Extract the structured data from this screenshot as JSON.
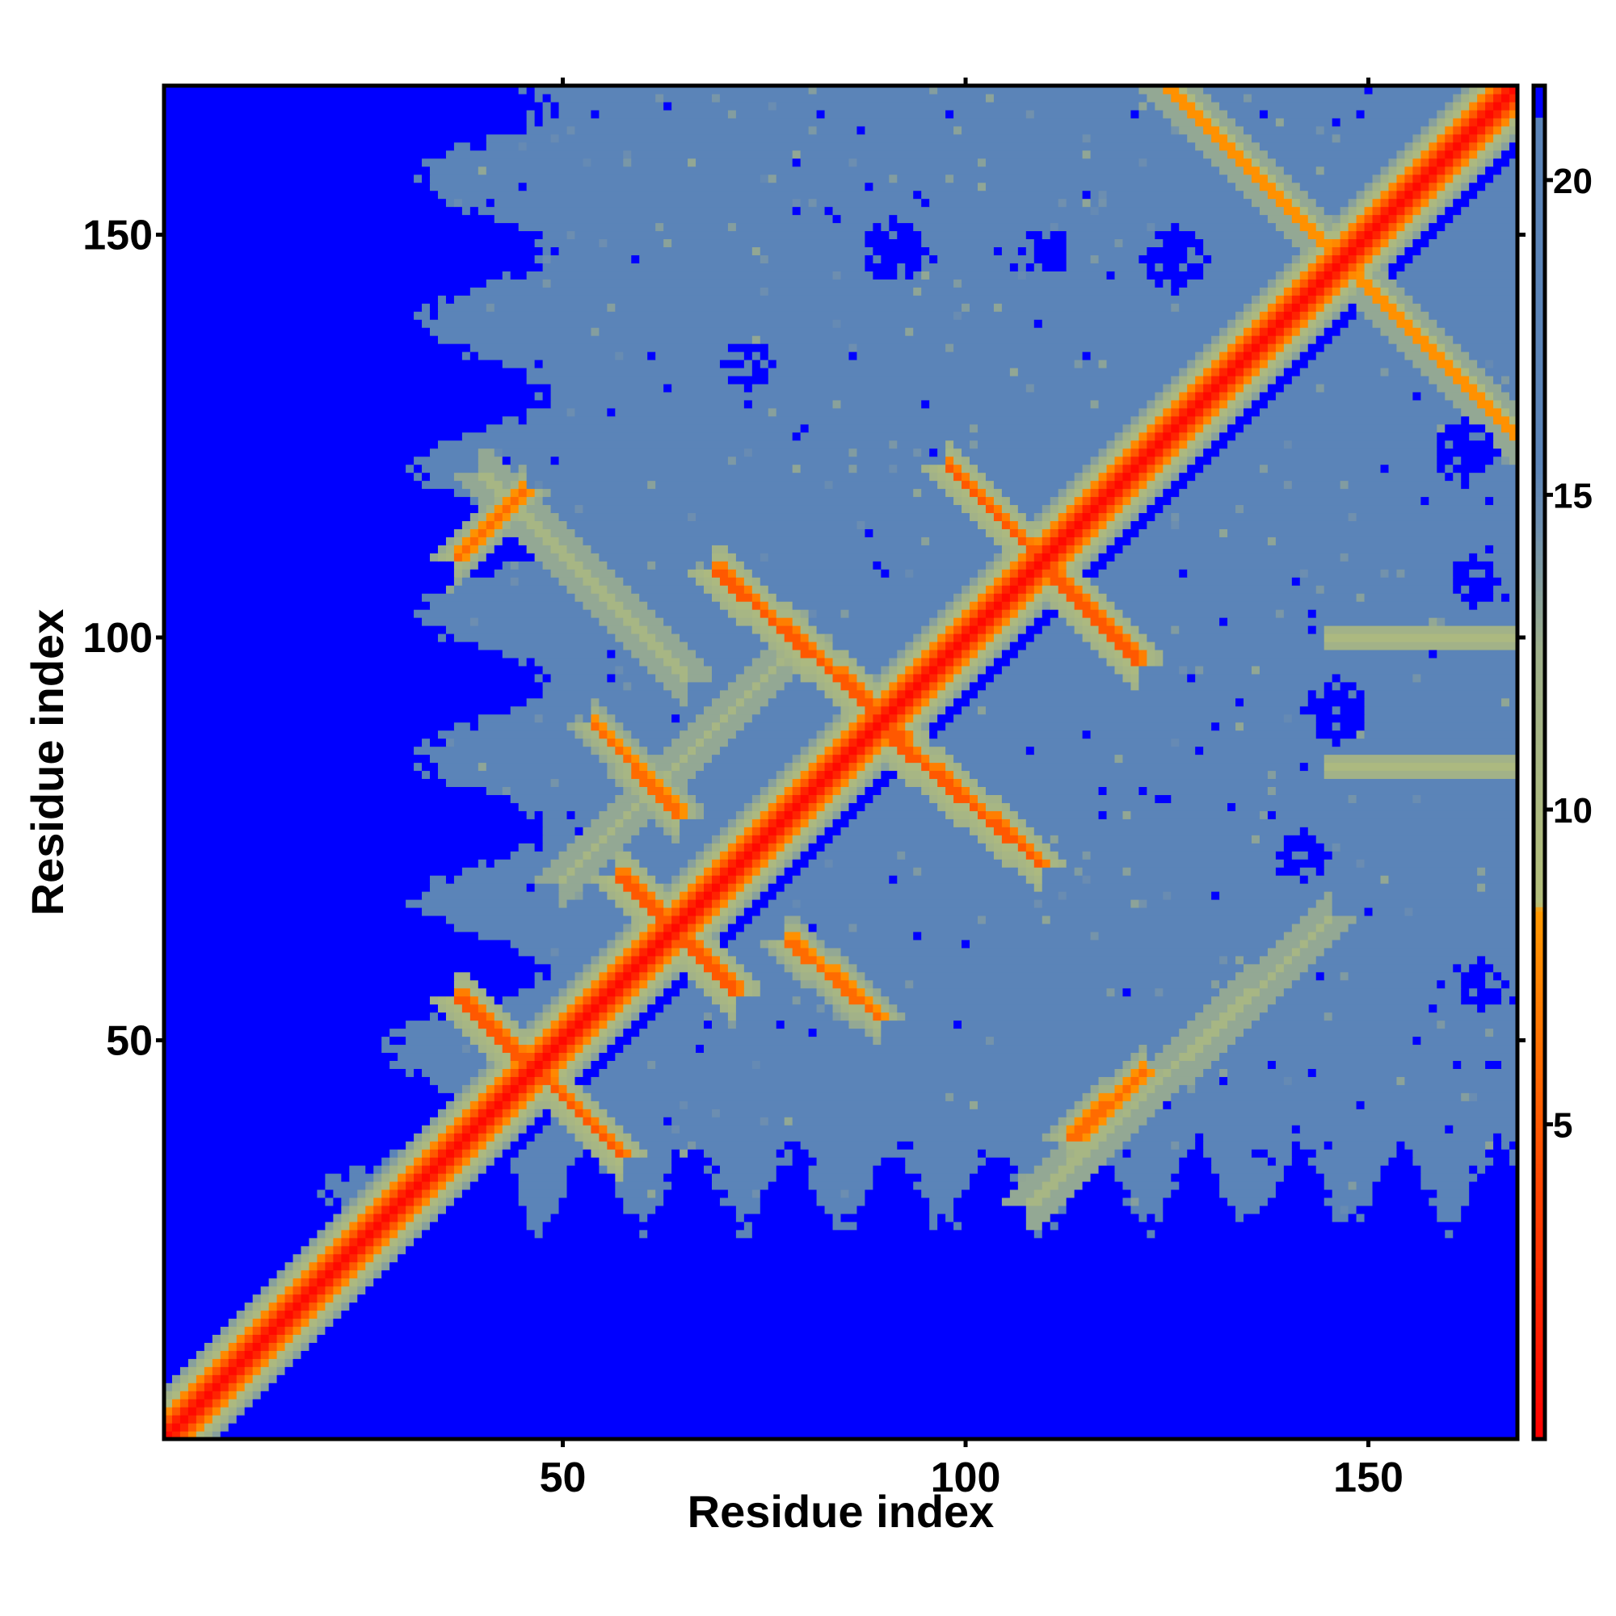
{
  "chart_data": {
    "type": "heatmap",
    "title": "",
    "xlabel": "Residue index",
    "ylabel": "Residue index",
    "n_residues": 168,
    "xlim": [
      1,
      168
    ],
    "ylim": [
      1,
      168
    ],
    "x_ticks": [
      50,
      100,
      150
    ],
    "y_ticks": [
      50,
      100,
      150
    ],
    "x_tick_labels": [
      "50",
      "100",
      "150"
    ],
    "y_tick_labels": [
      "50",
      "100",
      "150"
    ],
    "colorbar": {
      "ticks": [
        5,
        10,
        15,
        20
      ],
      "tick_labels": [
        "5",
        "10",
        "15",
        "20"
      ],
      "range": [
        0,
        21.5
      ],
      "stops": [
        {
          "value": 0,
          "color": "#ff0000"
        },
        {
          "value": 4,
          "color": "#ff4500"
        },
        {
          "value": 8.4,
          "color": "#ff9900"
        },
        {
          "value": 8.5,
          "color": "#b4bf7a"
        },
        {
          "value": 12.5,
          "color": "#9fb08a"
        },
        {
          "value": 14.5,
          "color": "#6e8fb0"
        },
        {
          "value": 15.5,
          "color": "#5b84b8"
        },
        {
          "value": 21,
          "color": "#5b84b8"
        },
        {
          "value": 21.01,
          "color": "#0000ff"
        },
        {
          "value": 21.5,
          "color": "#0000ff"
        }
      ]
    },
    "upper_triangle_fill": 19.5,
    "lower_triangle_fill": 21.5,
    "background_fill": 19.5,
    "features": [
      {
        "kind": "diagonal",
        "width": 1.5,
        "center_value": 1
      },
      {
        "kind": "segment",
        "from": [
          37,
          55
        ],
        "to": [
          57,
          36
        ],
        "value": 5
      },
      {
        "kind": "segment",
        "from": [
          37,
          110
        ],
        "to": [
          45,
          118
        ],
        "value": 6
      },
      {
        "kind": "segment",
        "from": [
          54,
          89
        ],
        "to": [
          64,
          78
        ],
        "value": 6
      },
      {
        "kind": "segment",
        "from": [
          57,
          70
        ],
        "to": [
          71,
          56
        ],
        "value": 5
      },
      {
        "kind": "segment",
        "from": [
          69,
          108
        ],
        "to": [
          92,
          88
        ],
        "value": 5
      },
      {
        "kind": "segment",
        "from": [
          90,
          88
        ],
        "to": [
          109,
          72
        ],
        "value": 5
      },
      {
        "kind": "segment",
        "from": [
          98,
          121
        ],
        "to": [
          121,
          97
        ],
        "value": 5
      },
      {
        "kind": "segment",
        "from": [
          78,
          62
        ],
        "to": [
          89,
          53
        ],
        "value": 6
      },
      {
        "kind": "segment",
        "from": [
          113,
          38
        ],
        "to": [
          122,
          46
        ],
        "value": 6
      },
      {
        "kind": "segment",
        "from": [
          108,
          30
        ],
        "to": [
          145,
          65
        ],
        "value": 11
      },
      {
        "kind": "segment",
        "from": [
          50,
          70
        ],
        "to": [
          80,
          100
        ],
        "value": 11
      },
      {
        "kind": "segment",
        "from": [
          40,
          120
        ],
        "to": [
          65,
          95
        ],
        "value": 11
      },
      {
        "kind": "segment",
        "from": [
          125,
          168
        ],
        "to": [
          168,
          125
        ],
        "value": 8
      },
      {
        "kind": "band",
        "value": 10,
        "from": [
          145,
          100
        ],
        "to": [
          168,
          100
        ]
      },
      {
        "kind": "band",
        "value": 10,
        "from": [
          145,
          84
        ],
        "to": [
          168,
          84
        ]
      },
      {
        "kind": "blob",
        "center": [
          162,
          123
        ],
        "radius": 4,
        "value": 21.5
      },
      {
        "kind": "blob",
        "center": [
          146,
          91
        ],
        "radius": 4,
        "value": 21.5
      },
      {
        "kind": "blob",
        "center": [
          91,
          148
        ],
        "radius": 4,
        "value": 21.5
      },
      {
        "kind": "blob",
        "center": [
          126,
          147
        ],
        "radius": 4,
        "value": 21.5
      },
      {
        "kind": "blob",
        "center": [
          110,
          148
        ],
        "radius": 3,
        "value": 21.5
      },
      {
        "kind": "blob",
        "center": [
          73,
          134
        ],
        "radius": 3,
        "value": 21.5
      },
      {
        "kind": "blob",
        "center": [
          142,
          73
        ],
        "radius": 3,
        "value": 21.5
      },
      {
        "kind": "blob",
        "center": [
          163,
          107
        ],
        "radius": 3,
        "value": 21.5
      },
      {
        "kind": "blob",
        "center": [
          164,
          57
        ],
        "radius": 3,
        "value": 21.5
      }
    ]
  }
}
